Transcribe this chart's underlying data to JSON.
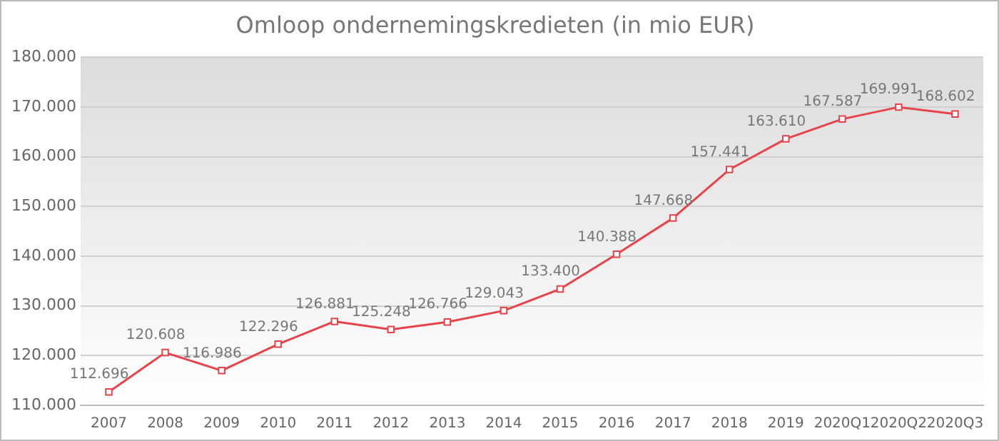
{
  "chart_data": {
    "type": "line",
    "title": "Omloop ondernemingskredieten (in mio EUR)",
    "categories": [
      "2007",
      "2008",
      "2009",
      "2010",
      "2011",
      "2012",
      "2013",
      "2014",
      "2015",
      "2016",
      "2017",
      "2018",
      "2019",
      "2020Q1",
      "2020Q2",
      "2020Q3"
    ],
    "series": [
      {
        "color": "#e8434a",
        "values": [
          112696,
          120608,
          116986,
          122296,
          126881,
          125248,
          126766,
          129043,
          133400,
          140388,
          147668,
          157441,
          163610,
          167587,
          169991,
          168602
        ],
        "value_labels": [
          "112.696",
          "120.608",
          "116.986",
          "122.296",
          "126.881",
          "125.248",
          "126.766",
          "129.043",
          "133.400",
          "140.388",
          "147.668",
          "157.441",
          "163.610",
          "167.587",
          "169.991",
          "168.602"
        ]
      }
    ],
    "ylim": [
      110000,
      180000
    ],
    "yticks": [
      {
        "value": 110000,
        "label": "110.000"
      },
      {
        "value": 120000,
        "label": "120.000"
      },
      {
        "value": 130000,
        "label": "130.000"
      },
      {
        "value": 140000,
        "label": "140.000"
      },
      {
        "value": 150000,
        "label": "150.000"
      },
      {
        "value": 160000,
        "label": "160.000"
      },
      {
        "value": 170000,
        "label": "170.000"
      },
      {
        "value": 180000,
        "label": "180.000"
      }
    ],
    "grid": "y",
    "marker": "square",
    "line_style": "solid",
    "legend": false
  }
}
